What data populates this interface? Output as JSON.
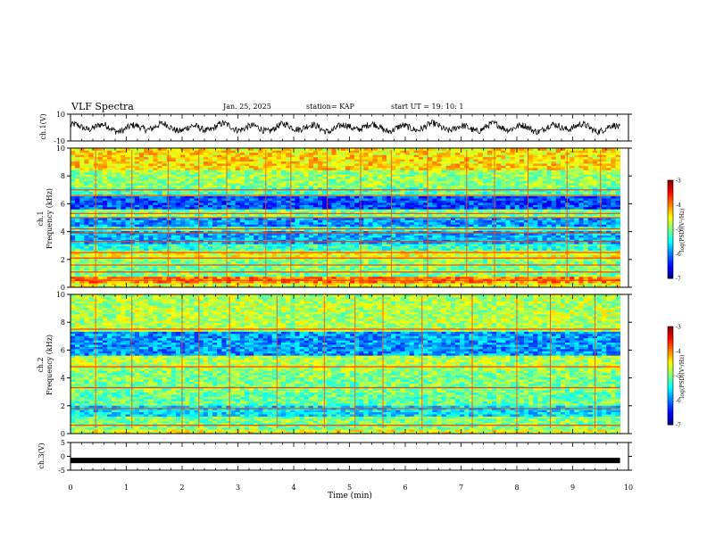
{
  "header": {
    "title": "VLF Spectra",
    "date": "Jan. 25, 2025",
    "station": "station= KAP",
    "start": "start  UT =   19: 10: 1"
  },
  "chart_data": [
    {
      "type": "line",
      "name": "ch1-waveform",
      "ylabel": "ch.1(V)",
      "ylim": [
        -10,
        10
      ],
      "yticks": [
        10,
        -10
      ],
      "xlim": [
        0,
        10
      ],
      "trace_range_min": [
        0,
        9.85
      ]
    },
    {
      "type": "heatmap",
      "name": "ch1-spectrogram",
      "ylabel_channel": "ch.1",
      "ylabel": "Frequency  (kHz)",
      "ylim": [
        0,
        10
      ],
      "yticks": [
        0,
        2,
        4,
        6,
        8,
        10
      ],
      "xlim": [
        0,
        10
      ],
      "data_extent_min": [
        0,
        9.85
      ],
      "colorbar": {
        "label": "log(PSD)(V²/Hz)",
        "ticks": [
          "-3",
          "-4",
          "-5",
          "-6",
          "-7"
        ],
        "range": [
          -7,
          -3
        ]
      },
      "bands_khz": [
        {
          "lo": 0.0,
          "hi": 0.3,
          "level": -4.6
        },
        {
          "lo": 0.3,
          "hi": 0.8,
          "level": -4.0
        },
        {
          "lo": 0.8,
          "hi": 2.0,
          "level": -5.0
        },
        {
          "lo": 2.0,
          "hi": 2.6,
          "level": -4.6
        },
        {
          "lo": 2.6,
          "hi": 3.2,
          "level": -5.3
        },
        {
          "lo": 3.2,
          "hi": 4.0,
          "level": -5.8
        },
        {
          "lo": 4.0,
          "hi": 4.4,
          "level": -5.2
        },
        {
          "lo": 4.4,
          "hi": 5.0,
          "level": -5.9
        },
        {
          "lo": 5.0,
          "hi": 5.6,
          "level": -5.0
        },
        {
          "lo": 5.6,
          "hi": 6.6,
          "level": -6.2
        },
        {
          "lo": 6.6,
          "hi": 7.2,
          "level": -5.2
        },
        {
          "lo": 7.2,
          "hi": 8.5,
          "level": -4.9
        },
        {
          "lo": 8.5,
          "hi": 10.0,
          "level": -4.4
        }
      ],
      "lines_khz": [
        0.5,
        1.1,
        1.6,
        2.1,
        2.5,
        3.3,
        3.9,
        4.2,
        5.0,
        5.3,
        6.6,
        7.0
      ],
      "spikes_min": [
        0.45,
        1.1,
        1.75,
        2.3,
        2.8,
        3.5,
        3.95,
        4.6,
        5.2,
        5.75,
        6.4,
        7.1,
        7.6,
        8.2,
        8.9,
        9.5
      ]
    },
    {
      "type": "heatmap",
      "name": "ch2-spectrogram",
      "ylabel_channel": "ch.2",
      "ylabel": "Frequency  (kHz)",
      "ylim": [
        0,
        10
      ],
      "yticks": [
        0,
        2,
        4,
        6,
        8,
        10
      ],
      "xlim": [
        0,
        10
      ],
      "data_extent_min": [
        0,
        9.85
      ],
      "colorbar": {
        "label": "log(PSD)(V²/Hz)",
        "ticks": [
          "-3",
          "-4",
          "-5",
          "-6",
          "-7"
        ],
        "range": [
          -7,
          -3
        ]
      },
      "bands_khz": [
        {
          "lo": 0.0,
          "hi": 0.3,
          "level": -4.6
        },
        {
          "lo": 0.3,
          "hi": 1.2,
          "level": -5.0
        },
        {
          "lo": 1.2,
          "hi": 2.0,
          "level": -5.6
        },
        {
          "lo": 2.0,
          "hi": 3.0,
          "level": -5.1
        },
        {
          "lo": 3.0,
          "hi": 4.6,
          "level": -5.0
        },
        {
          "lo": 4.6,
          "hi": 5.6,
          "level": -4.8
        },
        {
          "lo": 5.6,
          "hi": 7.4,
          "level": -5.9
        },
        {
          "lo": 7.4,
          "hi": 10.0,
          "level": -4.8
        }
      ],
      "lines_khz": [
        0.6,
        1.8,
        3.3,
        4.8,
        7.5
      ],
      "spikes_min": [
        0.45,
        1.1,
        2.0,
        2.3,
        2.85,
        3.7,
        4.55,
        5.1,
        5.6,
        6.3,
        7.2,
        8.0,
        8.6,
        9.4
      ]
    },
    {
      "type": "line",
      "name": "ch3-waveform",
      "ylabel": "ch.3(V)",
      "ylim": [
        -5,
        5
      ],
      "yticks": [
        5,
        0,
        -5
      ],
      "xlim": [
        0,
        10
      ],
      "level_v": -1.5,
      "trace_range_min": [
        0,
        9.85
      ],
      "xlabel": "Time  (min)",
      "xticks": [
        "0",
        "1",
        "2",
        "3",
        "4",
        "5",
        "6",
        "7",
        "8",
        "9",
        "10"
      ]
    }
  ]
}
